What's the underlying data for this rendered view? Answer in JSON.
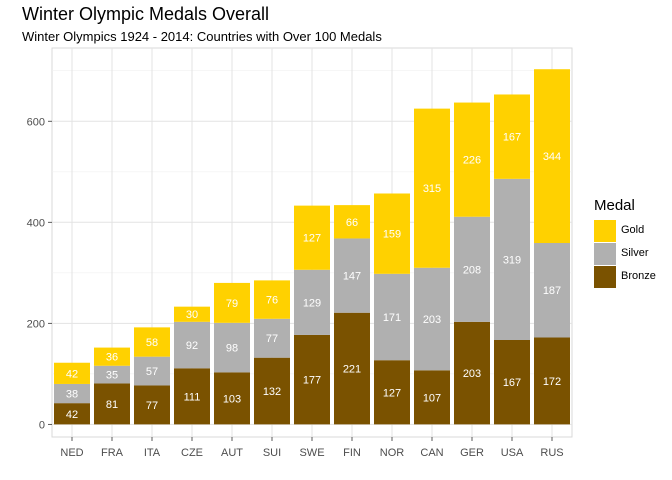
{
  "chart_data": {
    "type": "bar",
    "stacked": true,
    "title": "Winter Olympic Medals Overall",
    "subtitle": "Winter Olympics 1924 - 2014: Countries with Over 100 Medals",
    "xlabel": "",
    "ylabel": "",
    "categories": [
      "NED",
      "FRA",
      "ITA",
      "CZE",
      "AUT",
      "SUI",
      "SWE",
      "FIN",
      "NOR",
      "CAN",
      "GER",
      "USA",
      "RUS"
    ],
    "series": [
      {
        "name": "Bronze",
        "color": "#7a5200",
        "values": [
          42,
          81,
          77,
          111,
          103,
          132,
          177,
          221,
          127,
          107,
          203,
          167,
          172
        ]
      },
      {
        "name": "Silver",
        "color": "#b0b0b0",
        "values": [
          38,
          35,
          57,
          92,
          98,
          77,
          129,
          147,
          171,
          203,
          208,
          319,
          187
        ]
      },
      {
        "name": "Gold",
        "color": "#ffd100",
        "values": [
          42,
          36,
          58,
          30,
          79,
          76,
          127,
          66,
          159,
          315,
          226,
          167,
          344
        ]
      }
    ],
    "yticks": [
      0,
      200,
      400,
      600
    ],
    "ylim": [
      -25,
      745
    ],
    "grid": true,
    "legend": {
      "title": "Medal",
      "position": "right",
      "items": [
        "Gold",
        "Silver",
        "Bronze"
      ]
    }
  }
}
